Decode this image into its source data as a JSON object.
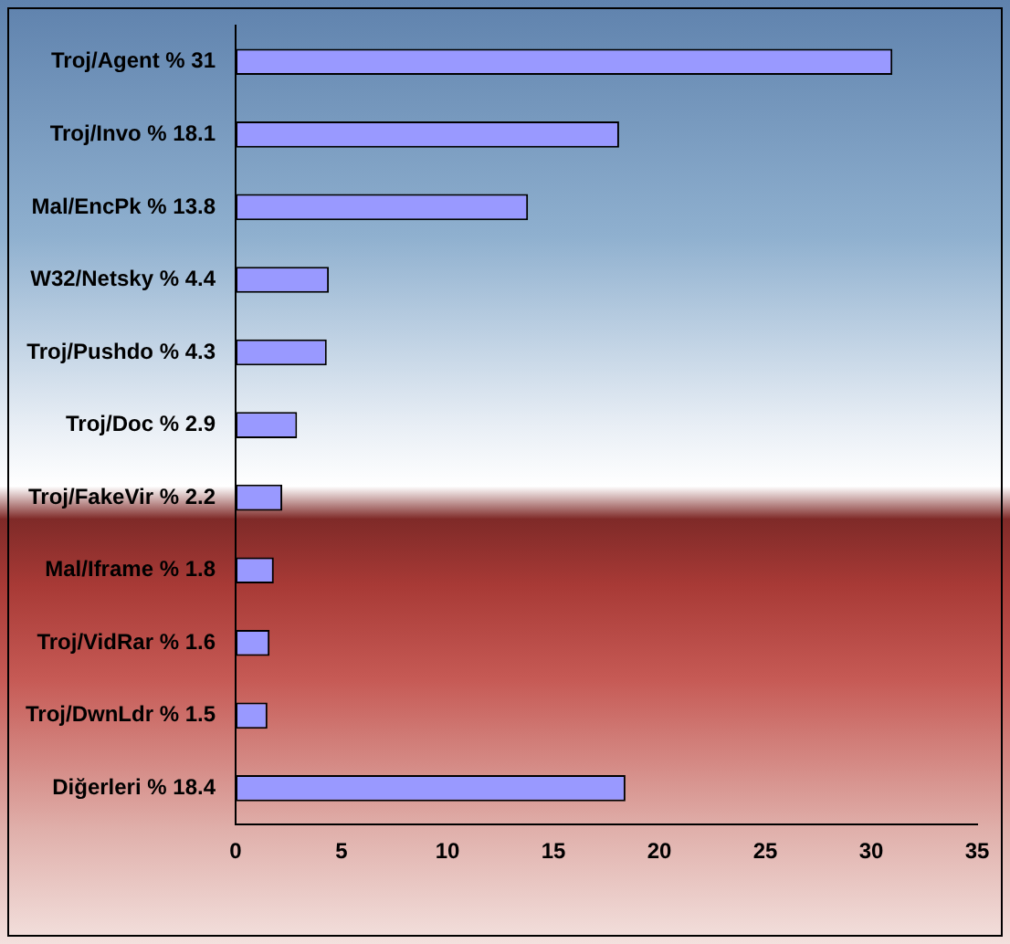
{
  "chart_data": {
    "type": "bar",
    "orientation": "horizontal",
    "categories": [
      "Troj/Agent % 31",
      "Troj/Invo % 18.1",
      "Mal/EncPk % 13.8",
      "W32/Netsky % 4.4",
      "Troj/Pushdo % 4.3",
      "Troj/Doc % 2.9",
      "Troj/FakeVir % 2.2",
      "Mal/Iframe % 1.8",
      "Troj/VidRar % 1.6",
      "Troj/DwnLdr % 1.5",
      "Diğerleri % 18.4"
    ],
    "values": [
      31,
      18.1,
      13.8,
      4.4,
      4.3,
      2.9,
      2.2,
      1.8,
      1.6,
      1.5,
      18.4
    ],
    "color": "#9999ff",
    "xlim": [
      0,
      35
    ],
    "xticks": [
      0,
      5,
      10,
      15,
      20,
      25,
      30,
      35
    ],
    "grid": false,
    "legend": false
  }
}
